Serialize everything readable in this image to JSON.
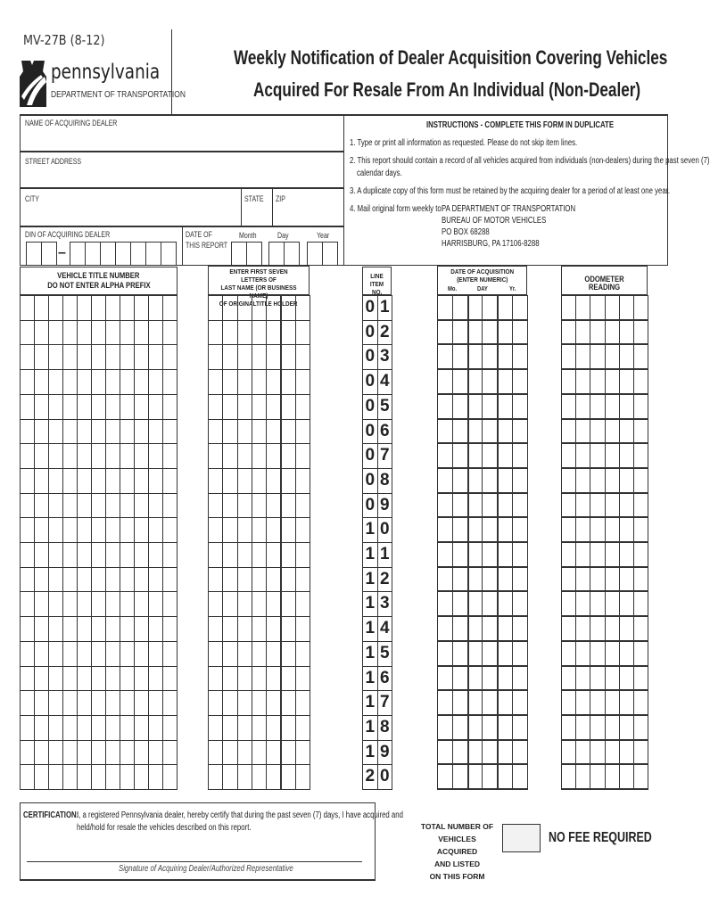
{
  "header": {
    "form_code": "MV-27B (8-12)",
    "logo_wordmark": "pennsylvania",
    "logo_subtitle": "DEPARTMENT OF TRANSPORTATION",
    "title_line1": "Weekly Notification of Dealer Acquisition Covering Vehicles",
    "title_line2": "Acquired For Resale From An Individual (Non-Dealer)"
  },
  "dealer_fields": {
    "name_label": "NAME OF ACQUIRING DEALER",
    "street_label": "STREET ADDRESS",
    "city_label": "CITY",
    "state_label": "STATE",
    "zip_label": "ZIP",
    "din_label": "DIN OF ACQUIRING DEALER",
    "din_separator": "–",
    "date_label_1": "DATE OF",
    "date_label_2": "THIS REPORT",
    "month_label": "Month",
    "day_label": "Day",
    "year_label": "Year"
  },
  "instructions": {
    "heading": "INSTRUCTIONS - COMPLETE THIS FORM IN DUPLICATE",
    "item1": "1.  Type or print all information as requested. Please do not skip item lines.",
    "item2a": "2.  This report should contain a record of all vehicles acquired from individuals (non-dealers) during the past seven (7)",
    "item2b": "calendar days.",
    "item3": "3.  A duplicate copy of this form must be retained by the acquiring dealer for a period of at least one year.",
    "item4": "4.  Mail original form weekly to:",
    "address": [
      "PA DEPARTMENT OF TRANSPORTATION",
      "BUREAU OF MOTOR VEHICLES",
      "PO BOX 68288",
      "HARRISBURG, PA 17106-8288"
    ]
  },
  "columns": {
    "title_number_1": "VEHICLE TITLE NUMBER",
    "title_number_2": "DO NOT ENTER ALPHA PREFIX",
    "last_name_1": "ENTER FIRST SEVEN LETTERS OF",
    "last_name_2": "LAST NAME (OR BUSINESS NAME)",
    "last_name_3": "OF ORIGINALTITLE HOLDER",
    "line_item_1": "LINE ITEM",
    "line_item_2": "NO.",
    "date_1": "DATE OF ACQUISITION",
    "date_2": "(ENTER NUMERIC)",
    "date_mo": "Mo.",
    "date_day": "DAY",
    "date_yr": "Yr.",
    "odometer": "ODOMETER READING"
  },
  "line_items": [
    "01",
    "02",
    "03",
    "04",
    "05",
    "06",
    "07",
    "08",
    "09",
    "10",
    "11",
    "12",
    "13",
    "14",
    "15",
    "16",
    "17",
    "18",
    "19",
    "20"
  ],
  "footer": {
    "cert_label": "CERTIFICATION:",
    "cert_text_1": "I, a registered Pennsylvania dealer, hereby certify that during the past seven (7) days, I have acquired and",
    "cert_text_2": "held/hold for resale the vehicles described on this report.",
    "signature_label": "Signature of Acquiring Dealer/Authorized Representative",
    "total_1": "TOTAL NUMBER OF",
    "total_2": "VEHICLES ACQUIRED",
    "total_3": "AND LISTED",
    "total_4": "ON THIS FORM",
    "no_fee": "NO FEE REQUIRED"
  }
}
